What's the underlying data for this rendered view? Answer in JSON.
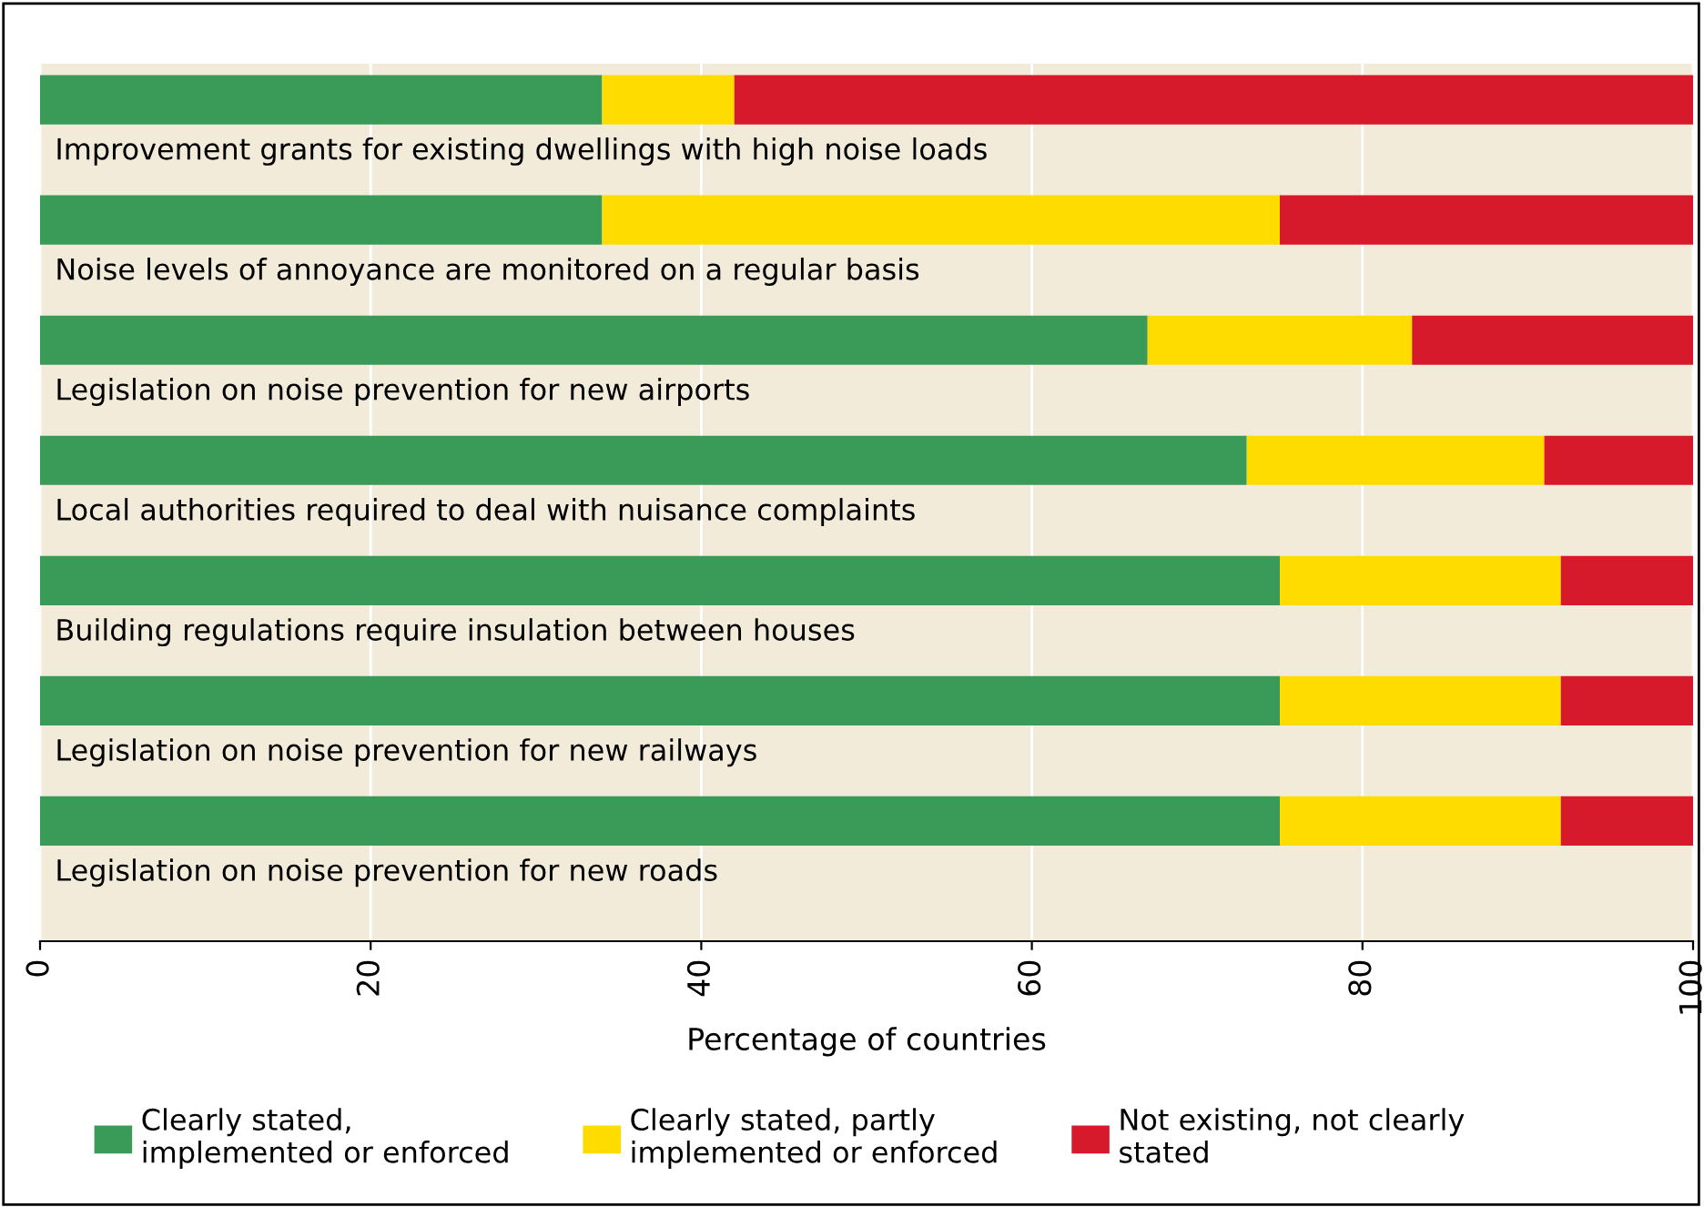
{
  "chart_data": {
    "type": "bar",
    "orientation": "horizontal",
    "stacked": true,
    "categories": [
      "Improvement grants for existing dwellings with high noise loads",
      "Noise levels of annoyance are monitored on a regular basis",
      "Legislation on noise prevention for new airports",
      "Local authorities required to deal with nuisance complaints",
      "Building regulations require insulation between houses",
      "Legislation on noise prevention for new railways",
      "Legislation on noise prevention for new roads"
    ],
    "series": [
      {
        "name": "Clearly stated, implemented or enforced",
        "color": "#3a9a57",
        "values": [
          34,
          34,
          67,
          73,
          75,
          75,
          75
        ]
      },
      {
        "name": "Clearly stated, partly implemented or enforced",
        "color": "#fedc00",
        "values": [
          8,
          41,
          16,
          18,
          17,
          17,
          17
        ]
      },
      {
        "name": "Not existing, not clearly stated",
        "color": "#d7192c",
        "values": [
          58,
          25,
          17,
          9,
          8,
          8,
          8
        ]
      }
    ],
    "xlabel": "Percentage of countries",
    "xlim": [
      0,
      100
    ],
    "xticks": [
      0,
      20,
      40,
      60,
      80,
      100
    ],
    "grid": "x",
    "legend": "bottom",
    "tick_labels": "x"
  }
}
